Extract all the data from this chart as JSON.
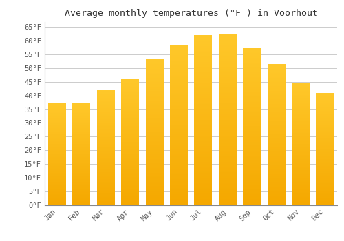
{
  "title": "Average monthly temperatures (°F ) in Voorhout",
  "months": [
    "Jan",
    "Feb",
    "Mar",
    "Apr",
    "May",
    "Jun",
    "Jul",
    "Aug",
    "Sep",
    "Oct",
    "Nov",
    "Dec"
  ],
  "values": [
    37.2,
    37.2,
    41.7,
    45.7,
    53.1,
    58.3,
    61.9,
    62.1,
    57.4,
    51.3,
    44.1,
    40.6
  ],
  "bar_color_top": "#FFC82A",
  "bar_color_bottom": "#F5A800",
  "background_color": "#FFFFFF",
  "grid_color": "#CCCCCC",
  "title_fontsize": 9.5,
  "tick_fontsize": 7.5,
  "ylim": [
    0,
    67
  ],
  "yticks": [
    0,
    5,
    10,
    15,
    20,
    25,
    30,
    35,
    40,
    45,
    50,
    55,
    60,
    65
  ]
}
